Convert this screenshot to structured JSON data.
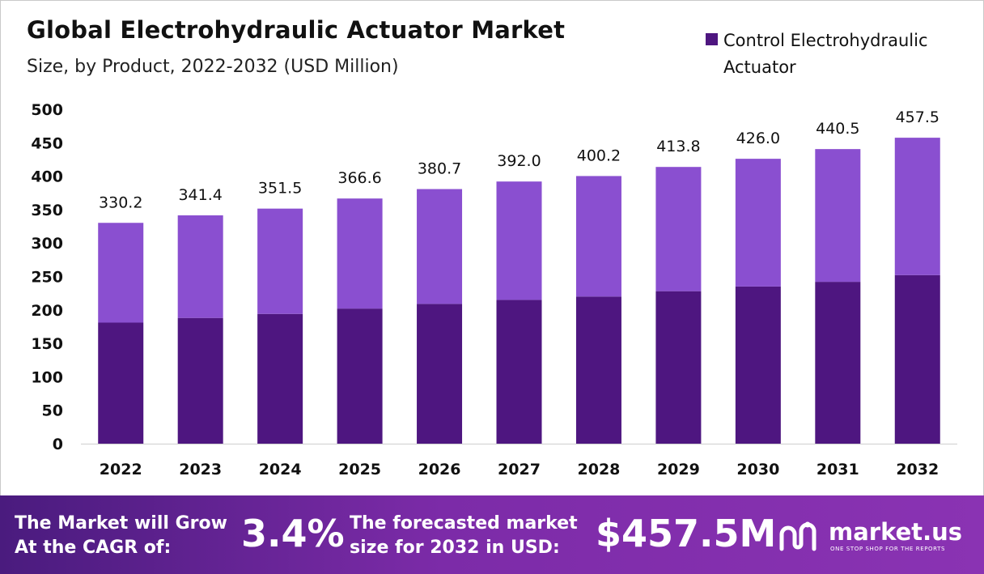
{
  "title": "Global Electrohydraulic Actuator Market",
  "subtitle": "Size, by Product, 2022-2032 (USD Million)",
  "colors": {
    "series_dark": "#4e1680",
    "series_light": "#8a4fd0",
    "footer_start": "#4a1b7e",
    "footer_end": "#8a33b3"
  },
  "chart_data": {
    "type": "bar",
    "title": "Global Electrohydraulic Actuator Market",
    "subtitle": "Size, by Product, 2022-2032 (USD Million)",
    "categories": [
      "2022",
      "2023",
      "2024",
      "2025",
      "2026",
      "2027",
      "2028",
      "2029",
      "2030",
      "2031",
      "2032"
    ],
    "series": [
      {
        "name": "Control Electrohydraulic Actuator",
        "values": [
          181,
          188,
          194,
          202,
          209,
          215,
          220,
          228,
          235,
          242,
          252
        ]
      },
      {
        "name": "",
        "values": [
          149.2,
          153.4,
          157.5,
          164.6,
          171.7,
          177.0,
          180.2,
          185.8,
          191.0,
          198.5,
          205.5
        ]
      }
    ],
    "totals": [
      330.2,
      341.4,
      351.5,
      366.6,
      380.7,
      392.0,
      400.2,
      413.8,
      426.0,
      440.5,
      457.5
    ],
    "total_labels": [
      "330.2",
      "341.4",
      "351.5",
      "366.6",
      "380.7",
      "392.0",
      "400.2",
      "413.8",
      "426.0",
      "440.5",
      "457.5"
    ],
    "y_ticks": [
      "0",
      "50",
      "100",
      "150",
      "200",
      "250",
      "300",
      "350",
      "400",
      "450",
      "500"
    ],
    "ylim": [
      0,
      500
    ],
    "xlabel": "",
    "ylabel": "",
    "legend": {
      "entries": [
        "Control Electrohydraulic Actuator"
      ],
      "placement": "top-right"
    },
    "grid": false,
    "stacked": true
  },
  "legend": {
    "label": "Control Electrohydraulic Actuator"
  },
  "footer": {
    "cagr_label": "The Market will Grow At the CAGR of:",
    "cagr_value": "3.4%",
    "forecast_label": "The forecasted market size for 2032 in USD:",
    "forecast_value": "$457.5M",
    "brand": "market.us",
    "tagline": "ONE STOP SHOP FOR THE REPORTS",
    "logo_icon": "market-us-logo-icon"
  }
}
